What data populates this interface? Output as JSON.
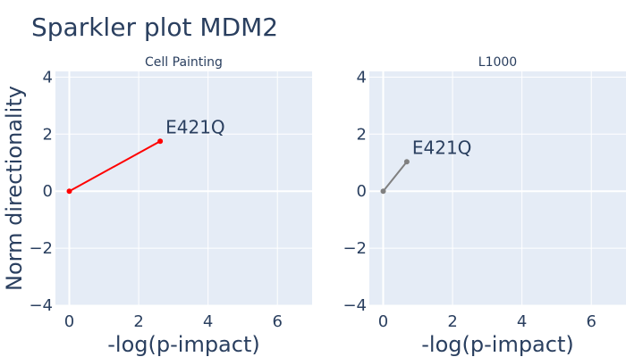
{
  "chart_data": {
    "type": "line",
    "title": "Sparkler plot MDM2",
    "ylabel": "Norm directionality",
    "xlabel": "-log(p-impact)",
    "xlim": [
      -0.4,
      7
    ],
    "ylim": [
      -4,
      4.2
    ],
    "x_ticks": [
      0,
      2,
      4,
      6
    ],
    "y_ticks": [
      -4,
      -2,
      0,
      2,
      4
    ],
    "grid": true,
    "panels": [
      {
        "subtitle": "Cell Painting",
        "color": "#ff0000",
        "series": [
          {
            "x": [
              0,
              2.62
            ],
            "y": [
              0,
              1.75
            ]
          }
        ],
        "annotation": {
          "text": "E421Q",
          "x": 2.62,
          "y": 1.75
        }
      },
      {
        "subtitle": "L1000",
        "color": "#808080",
        "series": [
          {
            "x": [
              0,
              0.68
            ],
            "y": [
              0,
              1.03
            ]
          }
        ],
        "annotation": {
          "text": "E421Q",
          "x": 0.68,
          "y": 1.03
        }
      }
    ]
  }
}
